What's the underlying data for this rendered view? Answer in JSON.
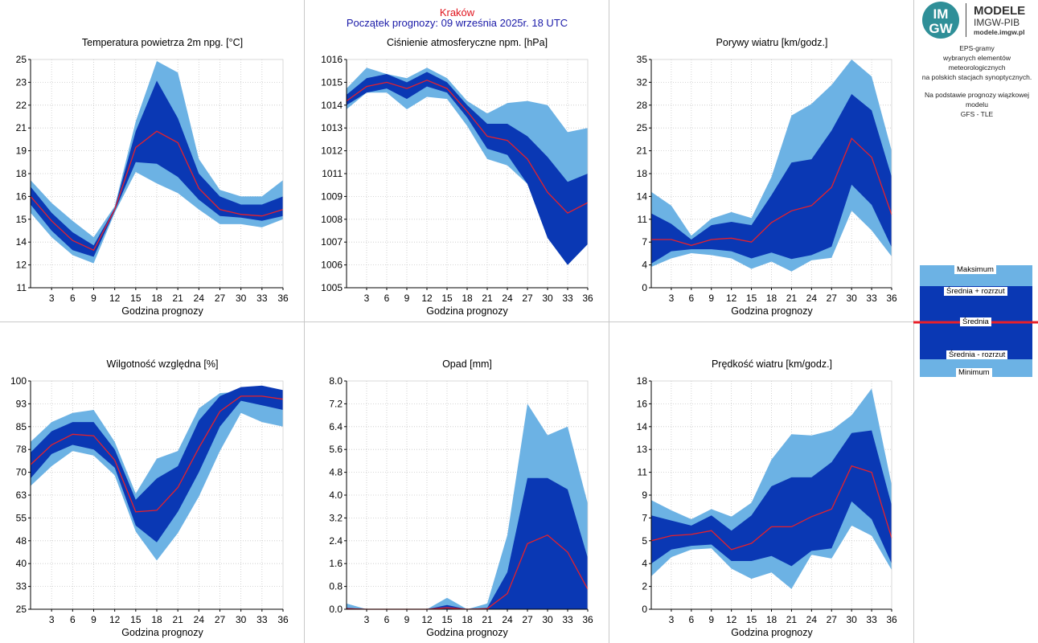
{
  "header": {
    "city": "Kraków",
    "start": "Początek prognozy: 09 września 2025r. 18 UTC"
  },
  "logo": {
    "brand_line1": "MODELE",
    "brand_line2": "IMGW-PIB",
    "url": "modele.imgw.pl"
  },
  "description": {
    "line1": "EPS-gramy",
    "line2": "wybranych elementów meteorologicznych",
    "line3": "na polskich stacjach  synoptycznych.",
    "line4": "Na podstawie prognozy wiązkowej modelu",
    "line5": "GFS - TLE"
  },
  "legend": {
    "max": "Maksimum",
    "mean_plus": "Średnia + rozrzut",
    "mean": "Średnia",
    "mean_minus": "Średnia - rozrzut",
    "min": "Minimum"
  },
  "colors": {
    "outer": "#6cb2e4",
    "inner": "#0a38b4",
    "mean": "#e8202a",
    "city": "#e0141e",
    "start": "#1a1aa8"
  },
  "chart_data": [
    {
      "type": "area",
      "title": "Temperatura powietrza 2m npg. [°C]",
      "xlabel": "Godzina prognozy",
      "x": [
        0,
        3,
        6,
        9,
        12,
        15,
        18,
        21,
        24,
        27,
        30,
        33,
        36
      ],
      "xticks": [
        "3",
        "6",
        "9",
        "12",
        "15",
        "18",
        "21",
        "24",
        "27",
        "30",
        "33",
        "36"
      ],
      "ylim": [
        11,
        25
      ],
      "yticks": [
        "11",
        "12",
        "14",
        "15",
        "16",
        "18",
        "19",
        "21",
        "22",
        "23",
        "25"
      ],
      "series": [
        {
          "name": "Maksimum",
          "values": [
            17.6,
            16.2,
            15.1,
            14.1,
            16.0,
            21.2,
            24.9,
            24.2,
            18.9,
            17.0,
            16.6,
            16.6,
            17.6
          ]
        },
        {
          "name": "Średnia + rozrzut",
          "values": [
            17.2,
            15.6,
            14.4,
            13.6,
            15.9,
            20.6,
            23.7,
            21.4,
            18.0,
            16.6,
            16.1,
            16.1,
            16.6
          ]
        },
        {
          "name": "Średnia",
          "values": [
            16.6,
            15.1,
            13.9,
            13.3,
            15.8,
            19.6,
            20.6,
            19.9,
            17.1,
            15.8,
            15.5,
            15.4,
            15.8
          ]
        },
        {
          "name": "Średnia - rozrzut",
          "values": [
            16.1,
            14.5,
            13.3,
            12.9,
            15.7,
            18.7,
            18.6,
            17.8,
            16.4,
            15.4,
            15.3,
            15.1,
            15.4
          ]
        },
        {
          "name": "Minimum",
          "values": [
            15.6,
            14.1,
            13.0,
            12.5,
            15.6,
            18.1,
            17.4,
            16.8,
            15.8,
            14.9,
            14.9,
            14.7,
            15.2
          ]
        }
      ]
    },
    {
      "type": "area",
      "title": "Ciśnienie atmosferyczne npm. [hPa]",
      "xlabel": "Godzina prognozy",
      "x": [
        0,
        3,
        6,
        9,
        12,
        15,
        18,
        21,
        24,
        27,
        30,
        33,
        36
      ],
      "xticks": [
        "3",
        "6",
        "9",
        "12",
        "15",
        "18",
        "21",
        "24",
        "27",
        "30",
        "33",
        "36"
      ],
      "ylim": [
        1005,
        1016
      ],
      "yticks": [
        "1005",
        "1006",
        "1007",
        "1008",
        "1009",
        "1011",
        "1012",
        "1013",
        "1014",
        "1015",
        "1016"
      ],
      "series": [
        {
          "name": "Maksimum",
          "values": [
            1014.6,
            1015.6,
            1015.3,
            1015.1,
            1015.6,
            1015.1,
            1014.0,
            1013.4,
            1013.9,
            1014.0,
            1013.8,
            1012.5,
            1012.7
          ]
        },
        {
          "name": "Średnia + rozrzut",
          "values": [
            1014.3,
            1015.1,
            1015.3,
            1014.9,
            1015.4,
            1014.9,
            1013.8,
            1012.9,
            1012.9,
            1012.3,
            1011.3,
            1010.1,
            1010.5
          ]
        },
        {
          "name": "Średnia",
          "values": [
            1014.0,
            1014.7,
            1014.9,
            1014.6,
            1015.0,
            1014.6,
            1013.5,
            1012.3,
            1012.1,
            1011.2,
            1009.6,
            1008.6,
            1009.1
          ]
        },
        {
          "name": "Średnia - rozrzut",
          "values": [
            1013.8,
            1014.4,
            1014.6,
            1014.1,
            1014.7,
            1014.4,
            1013.2,
            1011.7,
            1011.4,
            1010.0,
            1007.4,
            1006.1,
            1007.1
          ]
        },
        {
          "name": "Minimum",
          "values": [
            1013.6,
            1014.4,
            1014.4,
            1013.6,
            1014.2,
            1014.1,
            1012.8,
            1011.2,
            1010.9,
            1010.0,
            1007.4,
            1006.1,
            1007.1
          ]
        }
      ]
    },
    {
      "type": "area",
      "title": "Porywy wiatru [km/godz.]",
      "xlabel": "Godzina prognozy",
      "x": [
        0,
        3,
        6,
        9,
        12,
        15,
        18,
        21,
        24,
        27,
        30,
        33,
        36
      ],
      "xticks": [
        "3",
        "6",
        "9",
        "12",
        "15",
        "18",
        "21",
        "24",
        "27",
        "30",
        "33",
        "36"
      ],
      "ylim": [
        0,
        35
      ],
      "yticks": [
        "0",
        "4",
        "7",
        "11",
        "14",
        "18",
        "21",
        "25",
        "28",
        "32",
        "35"
      ],
      "series": [
        {
          "name": "Maksimum",
          "values": [
            14.7,
            12.6,
            8.0,
            10.6,
            11.6,
            10.7,
            17.0,
            26.4,
            28.2,
            31.1,
            35.0,
            32.4,
            21.0
          ]
        },
        {
          "name": "Średnia + rozrzut",
          "values": [
            11.4,
            9.8,
            7.4,
            9.6,
            10.1,
            9.6,
            14.2,
            19.2,
            19.7,
            24.1,
            29.7,
            27.2,
            17.0
          ]
        },
        {
          "name": "Średnia",
          "values": [
            7.4,
            7.4,
            6.5,
            7.4,
            7.6,
            7.0,
            10.0,
            11.8,
            12.6,
            15.4,
            22.9,
            20.0,
            11.2
          ]
        },
        {
          "name": "Średnia - rozrzut",
          "values": [
            3.7,
            5.6,
            5.9,
            5.9,
            5.6,
            4.5,
            5.4,
            4.4,
            5.0,
            6.3,
            15.8,
            12.7,
            6.2
          ]
        },
        {
          "name": "Minimum",
          "values": [
            3.2,
            4.5,
            5.3,
            5.0,
            4.5,
            2.9,
            4.0,
            2.5,
            4.2,
            4.6,
            11.8,
            8.8,
            4.8
          ]
        }
      ]
    },
    {
      "type": "area",
      "title": "Wilgotność względna [%]",
      "xlabel": "Godzina prognozy",
      "x": [
        0,
        3,
        6,
        9,
        12,
        15,
        18,
        21,
        24,
        27,
        30,
        33,
        36
      ],
      "xticks": [
        "3",
        "6",
        "9",
        "12",
        "15",
        "18",
        "21",
        "24",
        "27",
        "30",
        "33",
        "36"
      ],
      "ylim": [
        25,
        100
      ],
      "yticks": [
        "25",
        "33",
        "40",
        "48",
        "55",
        "63",
        "70",
        "78",
        "85",
        "93",
        "100"
      ],
      "series": [
        {
          "name": "Maksimum",
          "values": [
            80.0,
            86.5,
            89.5,
            90.5,
            80.0,
            63.0,
            74.5,
            77.0,
            91.0,
            96.0,
            96.5,
            96.0,
            96.0
          ]
        },
        {
          "name": "Średnia + rozrzut",
          "values": [
            76.5,
            83.5,
            86.5,
            86.5,
            77.5,
            61.0,
            68.0,
            72.0,
            87.0,
            95.0,
            98.0,
            98.5,
            97.0
          ]
        },
        {
          "name": "Średnia",
          "values": [
            72.5,
            79.0,
            82.5,
            82.0,
            74.0,
            57.0,
            57.5,
            65.0,
            78.0,
            90.0,
            95.0,
            95.0,
            94.0
          ]
        },
        {
          "name": "Średnia - rozrzut",
          "values": [
            68.0,
            76.0,
            79.0,
            77.5,
            71.5,
            52.5,
            47.0,
            57.0,
            70.0,
            85.0,
            93.5,
            92.0,
            90.5
          ]
        },
        {
          "name": "Minimum",
          "values": [
            65.5,
            72.0,
            77.0,
            75.5,
            69.0,
            50.5,
            41.0,
            50.0,
            62.0,
            77.0,
            89.5,
            86.5,
            85.0
          ]
        }
      ]
    },
    {
      "type": "area",
      "title": "Opad [mm]",
      "xlabel": "Godzina prognozy",
      "x": [
        0,
        3,
        6,
        9,
        12,
        15,
        18,
        21,
        24,
        27,
        30,
        33,
        36
      ],
      "xticks": [
        "3",
        "6",
        "9",
        "12",
        "15",
        "18",
        "21",
        "24",
        "27",
        "30",
        "33",
        "36"
      ],
      "ylim": [
        0,
        8
      ],
      "yticks": [
        "0.0",
        "0.8",
        "1.6",
        "2.4",
        "3.2",
        "4.0",
        "4.8",
        "5.6",
        "6.4",
        "7.2",
        "8.0"
      ],
      "series": [
        {
          "name": "Maksimum",
          "values": [
            0.2,
            0.0,
            0.0,
            0.0,
            0.0,
            0.4,
            0.0,
            0.2,
            2.6,
            7.2,
            6.1,
            6.4,
            3.7
          ]
        },
        {
          "name": "Średnia + rozrzut",
          "values": [
            0.05,
            0.0,
            0.0,
            0.0,
            0.0,
            0.15,
            0.0,
            0.05,
            1.3,
            4.6,
            4.6,
            4.2,
            1.8
          ]
        },
        {
          "name": "Średnia",
          "values": [
            0.02,
            0.0,
            0.0,
            0.0,
            0.0,
            0.05,
            0.0,
            0.02,
            0.55,
            2.3,
            2.6,
            2.0,
            0.7
          ]
        },
        {
          "name": "Średnia - rozrzut",
          "values": [
            0.0,
            0.0,
            0.0,
            0.0,
            0.0,
            0.0,
            0.0,
            0.0,
            0.0,
            0.0,
            0.0,
            0.0,
            0.0
          ]
        },
        {
          "name": "Minimum",
          "values": [
            0.0,
            0.0,
            0.0,
            0.0,
            0.0,
            0.0,
            0.0,
            0.0,
            0.0,
            0.15,
            0.65,
            0.0,
            0.0
          ]
        }
      ]
    },
    {
      "type": "area",
      "title": "Prędkość wiatru [km/godz.]",
      "xlabel": "Godzina prognozy",
      "x": [
        0,
        3,
        6,
        9,
        12,
        15,
        18,
        21,
        24,
        27,
        30,
        33,
        36
      ],
      "xticks": [
        "3",
        "6",
        "9",
        "12",
        "15",
        "18",
        "21",
        "24",
        "27",
        "30",
        "33",
        "36"
      ],
      "ylim": [
        0,
        18
      ],
      "yticks": [
        "0",
        "2",
        "4",
        "5",
        "7",
        "9",
        "11",
        "13",
        "14",
        "16",
        "18"
      ],
      "series": [
        {
          "name": "Maksimum",
          "values": [
            8.6,
            7.8,
            7.1,
            7.9,
            7.3,
            8.4,
            11.8,
            13.8,
            13.7,
            14.1,
            15.3,
            17.4,
            9.8
          ]
        },
        {
          "name": "Średnia + rozrzut",
          "values": [
            7.4,
            7.0,
            6.6,
            7.4,
            6.2,
            7.4,
            9.7,
            10.4,
            10.4,
            11.6,
            13.9,
            14.1,
            8.2
          ]
        },
        {
          "name": "Średnia",
          "values": [
            5.4,
            5.8,
            5.9,
            6.2,
            4.7,
            5.2,
            6.5,
            6.5,
            7.3,
            7.9,
            11.3,
            10.8,
            5.6
          ]
        },
        {
          "name": "Średnia - rozrzut",
          "values": [
            3.6,
            4.7,
            5.0,
            5.1,
            3.8,
            3.8,
            4.2,
            3.4,
            4.6,
            4.8,
            8.5,
            7.1,
            3.6
          ]
        },
        {
          "name": "Minimum",
          "values": [
            2.6,
            4.1,
            4.7,
            4.8,
            3.2,
            2.4,
            2.9,
            1.6,
            4.3,
            4.0,
            6.6,
            5.8,
            3.1
          ]
        }
      ]
    }
  ]
}
